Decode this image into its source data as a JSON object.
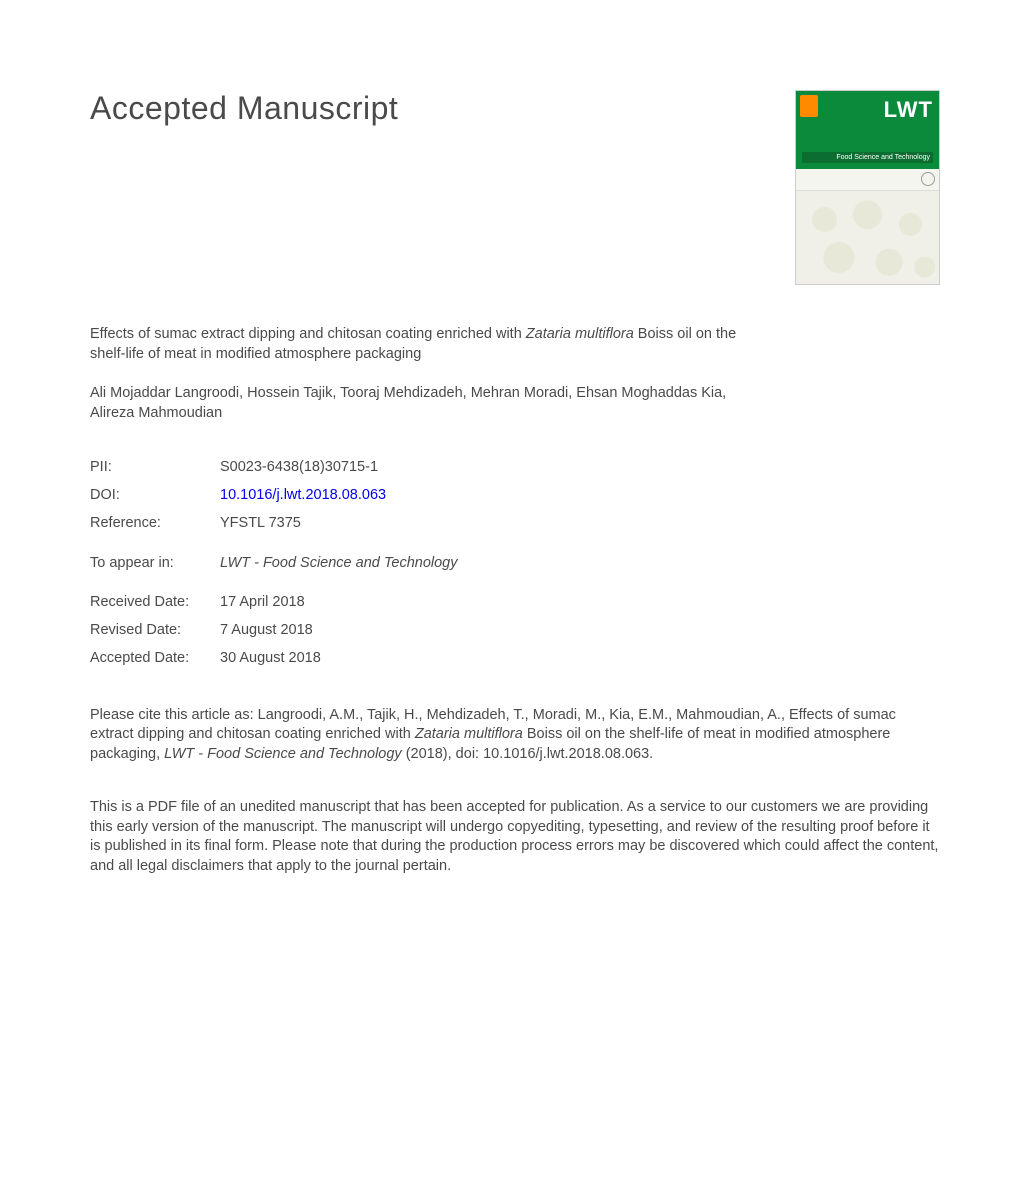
{
  "header": {
    "title": "Accepted Manuscript"
  },
  "journal_cover": {
    "brand": "LWT",
    "subtitle": "Food Science and Technology",
    "publisher_color": "#ff8a00",
    "header_bg": "#0a8a3a",
    "sub_bg": "#0b6e30"
  },
  "article": {
    "title_pre": "Effects of sumac extract dipping and chitosan coating enriched with ",
    "title_italic": "Zataria multiflora",
    "title_post": " Boiss oil on the shelf-life of meat in modified atmosphere packaging",
    "authors": "Ali Mojaddar Langroodi, Hossein Tajik, Tooraj Mehdizadeh, Mehran Moradi, Ehsan Moghaddas Kia, Alireza Mahmoudian"
  },
  "meta": {
    "pii_label": "PII:",
    "pii": "S0023-6438(18)30715-1",
    "doi_label": "DOI:",
    "doi": "10.1016/j.lwt.2018.08.063",
    "ref_label": "Reference:",
    "ref": "YFSTL 7375",
    "appear_label": "To appear in:",
    "appear_in": "LWT - Food Science and Technology",
    "received_label": "Received Date:",
    "received": "17 April 2018",
    "revised_label": "Revised Date:",
    "revised": "7 August 2018",
    "accepted_label": "Accepted Date:",
    "accepted": "30 August 2018"
  },
  "citation": {
    "pre": "Please cite this article as: Langroodi, A.M., Tajik, H., Mehdizadeh, T., Moradi, M., Kia, E.M., Mahmoudian, A., Effects of sumac extract dipping and chitosan coating enriched with ",
    "italic1": "Zataria multiflora",
    "mid": " Boiss oil on the shelf-life of meat in modified atmosphere packaging, ",
    "italic2": "LWT - Food Science and Technology",
    "post": " (2018), doi: 10.1016/j.lwt.2018.08.063."
  },
  "disclaimer": "This is a PDF file of an unedited manuscript that has been accepted for publication. As a service to our customers we are providing this early version of the manuscript. The manuscript will undergo copyediting, typesetting, and review of the resulting proof before it is published in its final form. Please note that during the production process errors may be discovered which could affect the content, and all legal disclaimers that apply to the journal pertain."
}
